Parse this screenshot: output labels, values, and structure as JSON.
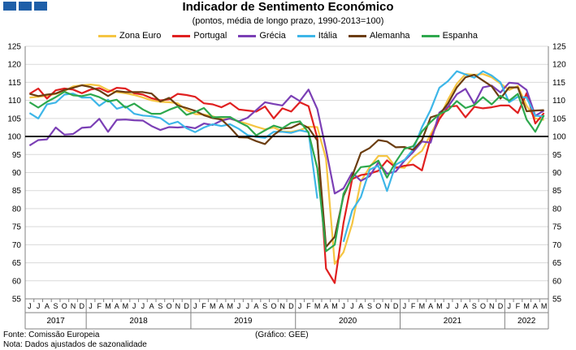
{
  "header": {
    "title": "Indicador de Sentimento Económico",
    "subtitle": "(pontos, média de longo prazo, 1990-2013=100)"
  },
  "footer": {
    "source": "Fonte: Comissão Europeia",
    "note": "Nota: Dados ajustados de sazonalidade",
    "credit": "(Gráfico: GEE)"
  },
  "chart_data": {
    "type": "line",
    "title": "Indicador de Sentimento Económico",
    "subtitle": "(pontos, média de longo prazo, 1990-2013=100)",
    "ylim": [
      55,
      125
    ],
    "yticks": [
      55,
      60,
      65,
      70,
      75,
      80,
      85,
      90,
      95,
      100,
      105,
      110,
      115,
      120,
      125
    ],
    "y_axis_both_sides": true,
    "reference_line": 100,
    "legend_position": "top",
    "grid": true,
    "month_labels": [
      "J",
      "J",
      "A",
      "S",
      "O",
      "N",
      "D",
      "J",
      "F",
      "M",
      "A",
      "M",
      "J",
      "J",
      "A",
      "S",
      "O",
      "N",
      "D",
      "J",
      "F",
      "M",
      "A",
      "M",
      "J",
      "J",
      "A",
      "S",
      "O",
      "N",
      "D",
      "J",
      "F",
      "M",
      "A",
      "M",
      "J",
      "J",
      "A",
      "S",
      "O",
      "N",
      "D",
      "J",
      "F",
      "M",
      "A",
      "M",
      "J",
      "J",
      "A",
      "S",
      "O",
      "N",
      "D",
      "J",
      "F",
      "M",
      "A",
      "M"
    ],
    "year_labels": [
      {
        "label": "2017",
        "start": 0,
        "end": 6
      },
      {
        "label": "2018",
        "start": 7,
        "end": 18
      },
      {
        "label": "2019",
        "start": 19,
        "end": 30
      },
      {
        "label": "2020",
        "start": 31,
        "end": 42
      },
      {
        "label": "2021",
        "start": 43,
        "end": 54
      },
      {
        "label": "2022",
        "start": 55,
        "end": 59
      }
    ],
    "series": [
      {
        "name": "Zona Euro",
        "color": "#f5c542",
        "values": [
          110.8,
          111.0,
          111.3,
          111.8,
          112.6,
          113.9,
          114.2,
          114.4,
          114.1,
          112.9,
          112.3,
          112.0,
          111.5,
          110.8,
          110.0,
          109.6,
          109.5,
          109.2,
          107.3,
          106.2,
          106.1,
          105.6,
          104.8,
          104.9,
          104.2,
          103.5,
          102.7,
          102.0,
          102.5,
          101.4,
          101.3,
          101.8,
          102.7,
          102.6,
          93.8,
          64.7,
          67.9,
          75.8,
          87.6,
          91.5,
          94.6,
          94.6,
          91.5,
          91.3,
          94.2,
          96.0,
          100.6,
          105.1,
          110.3,
          114.6,
          117.3,
          117.1,
          117.3,
          116.4,
          114.7,
          112.9,
          114.0,
          108.5,
          105.0,
          104.6
        ]
      },
      {
        "name": "Portugal",
        "color": "#e02020",
        "values": [
          111.8,
          113.3,
          110.5,
          112.8,
          113.3,
          113.0,
          112.0,
          113.0,
          113.4,
          112.3,
          113.5,
          113.3,
          112.0,
          111.6,
          110.6,
          110.0,
          110.3,
          111.8,
          111.5,
          111.0,
          109.2,
          108.9,
          108.1,
          109.3,
          107.5,
          107.2,
          106.9,
          108.3,
          105.0,
          107.8,
          106.9,
          109.5,
          108.4,
          99.6,
          63.4,
          59.4,
          76.0,
          88.2,
          89.3,
          89.7,
          90.5,
          93.4,
          91.3,
          91.9,
          92.2,
          90.6,
          99.6,
          104.8,
          108.2,
          108.5,
          105.3,
          108.2,
          107.8,
          108.1,
          108.6,
          108.6,
          106.5,
          112.0,
          103.6,
          106.5
        ]
      },
      {
        "name": "Grécia",
        "color": "#7b3fb5",
        "values": [
          97.5,
          99.0,
          99.2,
          102.5,
          100.5,
          100.7,
          102.4,
          102.6,
          104.9,
          101.3,
          104.6,
          104.7,
          104.5,
          104.4,
          102.9,
          101.8,
          102.6,
          102.5,
          102.7,
          102.3,
          103.6,
          103.2,
          104.4,
          105.0,
          104.2,
          105.2,
          107.3,
          109.5,
          109.0,
          108.6,
          111.3,
          109.8,
          113.0,
          107.6,
          96.4,
          84.2,
          85.6,
          90.0,
          87.7,
          89.0,
          92.8,
          89.7,
          90.3,
          93.3,
          95.7,
          98.6,
          98.3,
          106.6,
          108.3,
          111.7,
          113.2,
          109.0,
          113.6,
          114.1,
          112.2,
          114.9,
          114.7,
          112.9,
          105.7,
          107.2
        ]
      },
      {
        "name": "Itália",
        "color": "#3db6e8",
        "values": [
          106.5,
          105.0,
          108.9,
          109.4,
          111.6,
          111.9,
          110.8,
          110.8,
          108.5,
          110.2,
          107.7,
          108.4,
          106.3,
          105.8,
          105.6,
          105.1,
          103.4,
          104.1,
          102.3,
          101.2,
          102.5,
          103.4,
          102.9,
          103.4,
          102.1,
          100.4,
          99.9,
          99.6,
          101.3,
          101.3,
          101.0,
          101.7,
          101.2,
          82.8,
          null,
          null,
          70.8,
          79.5,
          83.2,
          90.8,
          91.9,
          84.9,
          92.2,
          93.5,
          96.4,
          102.6,
          107.4,
          113.5,
          115.4,
          118.1,
          117.2,
          116.3,
          118.1,
          116.9,
          115.0,
          109.5,
          111.0,
          110.8,
          105.7,
          105.6
        ]
      },
      {
        "name": "Alemanha",
        "color": "#6b3d10",
        "values": [
          111.8,
          111.2,
          111.6,
          111.9,
          112.9,
          113.5,
          114.2,
          113.7,
          112.7,
          111.2,
          112.6,
          112.3,
          112.3,
          112.3,
          111.9,
          109.7,
          110.7,
          108.6,
          107.9,
          107.1,
          105.9,
          105.1,
          104.7,
          102.5,
          99.8,
          99.7,
          98.7,
          97.9,
          100.4,
          102.2,
          102.4,
          103.6,
          102.4,
          98.9,
          69.4,
          72.2,
          83.5,
          89.0,
          95.5,
          96.8,
          99.0,
          98.6,
          97.0,
          97.1,
          96.3,
          99.0,
          105.3,
          106.1,
          109.2,
          113.6,
          116.4,
          117.1,
          115.5,
          113.9,
          110.5,
          113.6,
          113.6,
          107.0,
          107.2,
          107.3
        ]
      },
      {
        "name": "Espanha",
        "color": "#2ea84d",
        "values": [
          109.5,
          108.0,
          109.6,
          110.9,
          112.4,
          111.4,
          111.2,
          111.7,
          110.9,
          109.7,
          110.2,
          108.0,
          109.1,
          107.5,
          106.3,
          106.3,
          107.4,
          108.3,
          106.0,
          106.8,
          107.9,
          105.3,
          105.4,
          105.4,
          104.0,
          102.8,
          100.3,
          101.7,
          103.0,
          102.3,
          103.8,
          104.2,
          101.1,
          91.2,
          68.2,
          70.0,
          84.1,
          88.5,
          91.5,
          91.8,
          93.3,
          88.6,
          93.0,
          96.6,
          97.3,
          101.4,
          104.0,
          106.2,
          107.3,
          109.8,
          107.9,
          108.7,
          110.9,
          108.9,
          111.3,
          109.9,
          111.8,
          104.7,
          101.3,
          105.9
        ]
      }
    ]
  }
}
